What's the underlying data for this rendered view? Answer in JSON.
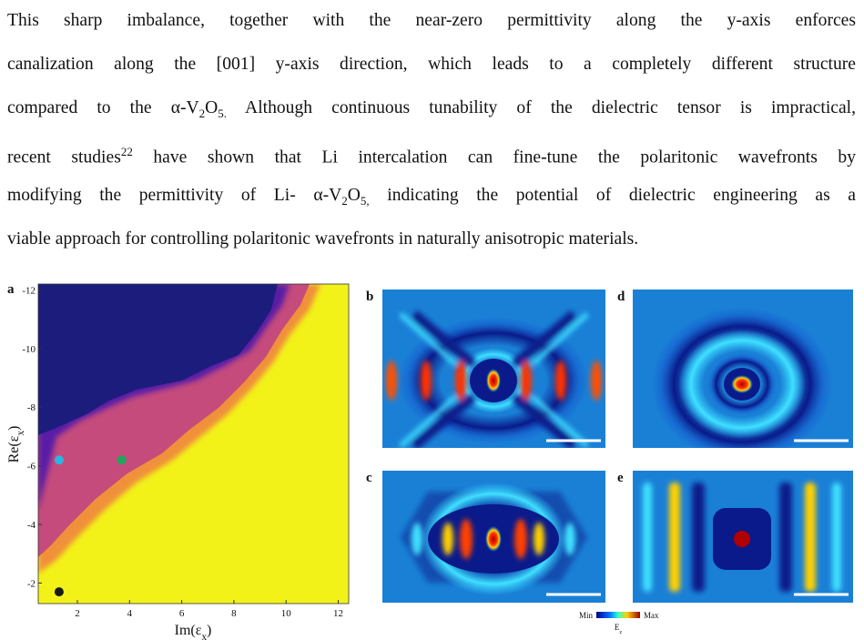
{
  "paragraph": {
    "lines": [
      [
        {
          "text": "This sharp imbalance, together with the near-zero permittivity along the y-axis enforces"
        }
      ],
      [
        {
          "text": "canalization along the [001] y-axis direction, which leads to a completely different structure"
        }
      ],
      [
        {
          "text": "compared to the α-V"
        },
        {
          "text": "2",
          "script": "sub"
        },
        {
          "text": "O"
        },
        {
          "text": "5.",
          "script": "sub"
        },
        {
          "text": " Although continuous tunability of the dielectric tensor is impractical,"
        }
      ],
      [
        {
          "text": "recent studies"
        },
        {
          "text": "22",
          "script": "sup"
        },
        {
          "text": " have shown that Li intercalation can fine-tune the polaritonic wavefronts by"
        }
      ],
      [
        {
          "text": "modifying the permittivity of Li- α-V"
        },
        {
          "text": "2",
          "script": "sub"
        },
        {
          "text": "O"
        },
        {
          "text": "5,",
          "script": "sub"
        },
        {
          "text": " indicating the potential of dielectric engineering as a"
        }
      ],
      [
        {
          "text": "viable approach for controlling polaritonic wavefronts in naturally anisotropic materials."
        }
      ]
    ]
  },
  "figure": {
    "panel_a": {
      "label": "a",
      "chart_data": {
        "type": "scatter",
        "x_label": [
          {
            "text": "Im(ε"
          },
          {
            "text": "x",
            "script": "sub"
          },
          {
            "text": ")"
          }
        ],
        "y_label": [
          {
            "text": "Re(ε"
          },
          {
            "text": "x",
            "script": "sub"
          },
          {
            "text": ")"
          }
        ],
        "xlim": [
          0.5,
          12.4
        ],
        "xticks": [
          2,
          4,
          6,
          8,
          10,
          12
        ],
        "ylim": [
          -12.2,
          -1.3
        ],
        "y_inverted": true,
        "yticks": [
          -12,
          -10,
          -8,
          -6,
          -4,
          -2
        ],
        "points": [
          {
            "x": 1.3,
            "y": -6.2,
            "color": "#2bb5e3"
          },
          {
            "x": 3.7,
            "y": -6.2,
            "color": "#1fa65a"
          },
          {
            "x": 1.3,
            "y": -1.7,
            "color": "#1a1a1a"
          }
        ]
      }
    },
    "panel_b": {
      "label": "b"
    },
    "panel_c": {
      "label": "c"
    },
    "panel_d": {
      "label": "d"
    },
    "panel_e": {
      "label": "e"
    },
    "colorbar": {
      "min": "Min",
      "max": "Max",
      "quantity": [
        {
          "text": "E"
        },
        {
          "text": "z",
          "script": "sub"
        }
      ]
    }
  }
}
